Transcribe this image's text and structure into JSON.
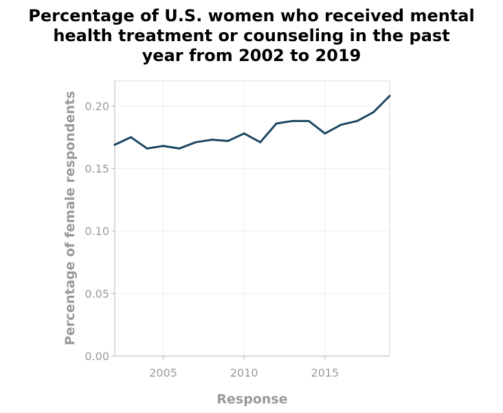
{
  "chart_data": {
    "type": "line",
    "title_lines": [
      "Percentage of U.S. women who received mental",
      "health treatment or counseling in the past",
      "year from 2002 to 2019"
    ],
    "xlabel": "Response",
    "ylabel": "Percentage of female respondents",
    "xlim": [
      2002,
      2019
    ],
    "ylim": [
      0,
      0.22
    ],
    "x_ticks": [
      2005,
      2010,
      2015
    ],
    "x_tick_labels": [
      "2005",
      "2010",
      "2015"
    ],
    "y_ticks": [
      0,
      0.05,
      0.1,
      0.15,
      0.2
    ],
    "y_tick_labels": [
      "0.00",
      "0.05",
      "0.10",
      "0.15",
      "0.20"
    ],
    "grid": true,
    "legend": "none",
    "line_color": "#1b4663",
    "series": [
      {
        "x": [
          2002,
          2003,
          2004,
          2005,
          2006,
          2007,
          2008,
          2009,
          2010,
          2011,
          2012,
          2013,
          2014,
          2015,
          2016,
          2017,
          2018,
          2019
        ],
        "values": [
          0.169,
          0.175,
          0.166,
          0.168,
          0.166,
          0.171,
          0.173,
          0.172,
          0.178,
          0.171,
          0.186,
          0.188,
          0.188,
          0.178,
          0.185,
          0.188,
          0.195,
          0.208
        ]
      }
    ]
  }
}
